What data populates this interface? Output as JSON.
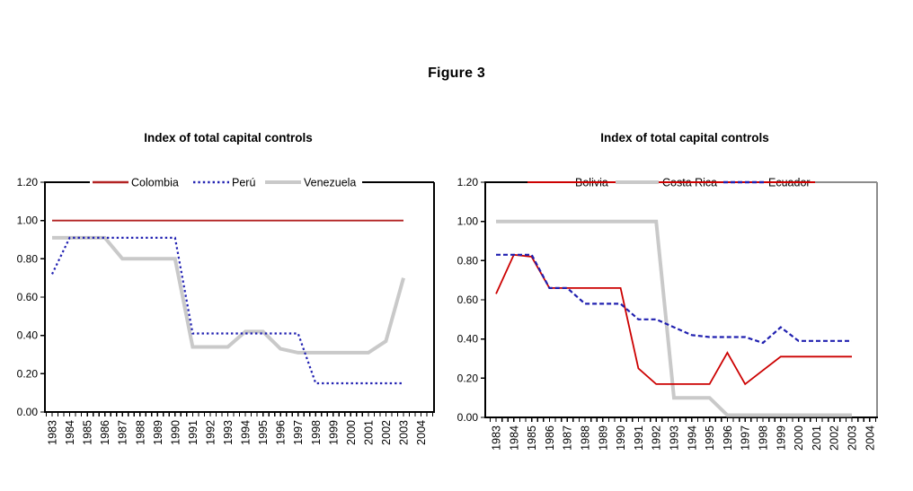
{
  "figure_title": "Figure 3",
  "background_color": "#ffffff",
  "chart_data": [
    {
      "type": "line",
      "title": "Index of total capital controls",
      "x": [
        1983,
        1984,
        1985,
        1986,
        1987,
        1988,
        1989,
        1990,
        1991,
        1992,
        1993,
        1994,
        1995,
        1996,
        1997,
        1998,
        1999,
        2000,
        2001,
        2002,
        2003
      ],
      "x_labels": [
        "1983",
        "1984",
        "1985",
        "1986",
        "1987",
        "1988",
        "1989",
        "1990",
        "1991",
        "1992",
        "1993",
        "1994",
        "1995",
        "1996",
        "1997",
        "1998",
        "1999",
        "2000",
        "2001",
        "2002",
        "2003",
        "2004"
      ],
      "ylim": [
        0,
        1.2
      ],
      "y_tick_labels": [
        "0.00",
        "0.20",
        "0.40",
        "0.60",
        "0.80",
        "1.00",
        "1.20"
      ],
      "grid": false,
      "frame_color": "#000000",
      "axis_color": "#000000",
      "legend": {
        "position": "top-inside",
        "overline_color": null
      },
      "series": [
        {
          "name": "Colombia",
          "color": "#b22222",
          "line_style": "solid",
          "line_width": 1.8,
          "z": 1,
          "values": [
            1.0,
            1.0,
            1.0,
            1.0,
            1.0,
            1.0,
            1.0,
            1.0,
            1.0,
            1.0,
            1.0,
            1.0,
            1.0,
            1.0,
            1.0,
            1.0,
            1.0,
            1.0,
            1.0,
            1.0,
            1.0
          ]
        },
        {
          "name": "Perú",
          "color": "#2222b2",
          "line_style": "dotted",
          "line_width": 2.2,
          "z": 2,
          "values": [
            0.72,
            0.91,
            0.91,
            0.91,
            0.91,
            0.91,
            0.91,
            0.91,
            0.41,
            0.41,
            0.41,
            0.41,
            0.41,
            0.41,
            0.41,
            0.15,
            0.15,
            0.15,
            0.15,
            0.15,
            0.15
          ]
        },
        {
          "name": "Venezuela",
          "color": "#c9c9c9",
          "line_style": "solid",
          "line_width": 4,
          "z": 0,
          "values": [
            0.91,
            0.91,
            0.91,
            0.91,
            0.8,
            0.8,
            0.8,
            0.8,
            0.34,
            0.34,
            0.34,
            0.42,
            0.42,
            0.33,
            0.31,
            0.31,
            0.31,
            0.31,
            0.31,
            0.37,
            0.7
          ]
        }
      ]
    },
    {
      "type": "line",
      "title": "Index of total capital controls",
      "x": [
        1983,
        1984,
        1985,
        1986,
        1987,
        1988,
        1989,
        1990,
        1991,
        1992,
        1993,
        1994,
        1995,
        1996,
        1997,
        1998,
        1999,
        2000,
        2001,
        2002,
        2003
      ],
      "x_labels": [
        "1983",
        "1984",
        "1985",
        "1986",
        "1987",
        "1988",
        "1989",
        "1990",
        "1991",
        "1992",
        "1993",
        "1994",
        "1995",
        "1996",
        "1997",
        "1998",
        "1999",
        "2000",
        "2001",
        "2002",
        "2003",
        "2004"
      ],
      "ylim": [
        0,
        1.2
      ],
      "y_tick_labels": [
        "0.00",
        "0.20",
        "0.40",
        "0.60",
        "0.80",
        "1.00",
        "1.20"
      ],
      "grid": false,
      "frame_color": "#8c8c8c",
      "axis_color": "#000000",
      "legend": {
        "position": "top-inside",
        "overline_color": "#cc0000"
      },
      "series": [
        {
          "name": "Bolivia",
          "color": "#cc0000",
          "line_style": "solid",
          "line_width": 1.8,
          "z": 1,
          "values": [
            0.63,
            0.83,
            0.82,
            0.66,
            0.66,
            0.66,
            0.66,
            0.66,
            0.25,
            0.17,
            0.17,
            0.17,
            0.17,
            0.33,
            0.17,
            0.24,
            0.31,
            0.31,
            0.31,
            0.31,
            0.31
          ]
        },
        {
          "name": "Costa Rica",
          "color": "#c9c9c9",
          "line_style": "solid",
          "line_width": 4,
          "z": 0,
          "values": [
            1.0,
            1.0,
            1.0,
            1.0,
            1.0,
            1.0,
            1.0,
            1.0,
            1.0,
            1.0,
            0.1,
            0.1,
            0.1,
            0.0,
            0.0,
            0.0,
            0.0,
            0.0,
            0.0,
            0.0,
            0.0
          ]
        },
        {
          "name": "Ecuador",
          "color": "#2020b0",
          "line_style": "dashed",
          "line_width": 2.2,
          "z": 2,
          "values": [
            0.83,
            0.83,
            0.83,
            0.66,
            0.66,
            0.58,
            0.58,
            0.58,
            0.5,
            0.5,
            0.46,
            0.42,
            0.41,
            0.41,
            0.41,
            0.38,
            0.46,
            0.39,
            0.39,
            0.39,
            0.39
          ]
        }
      ]
    }
  ]
}
